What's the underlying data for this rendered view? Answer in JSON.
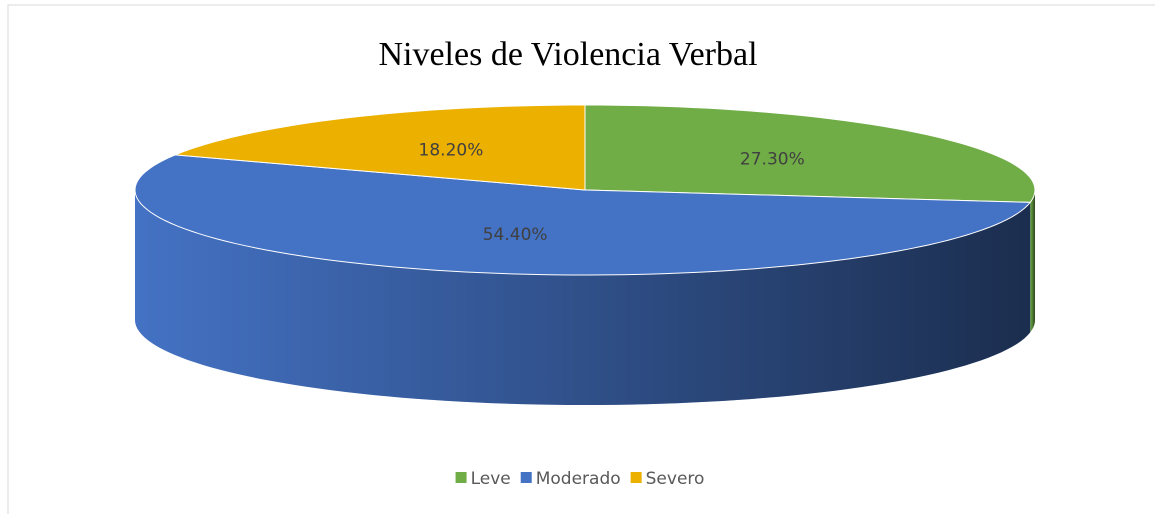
{
  "chart_data": {
    "type": "pie",
    "title": "Niveles de Violencia Verbal",
    "categories": [
      "Leve",
      "Moderado",
      "Severo"
    ],
    "values": [
      27.3,
      54.4,
      18.2
    ],
    "value_labels": [
      "27.30%",
      "54.40%",
      "18.20%"
    ],
    "colors": [
      "#70ad47",
      "#4472c4",
      "#ebb000"
    ],
    "legend": "bottom"
  }
}
